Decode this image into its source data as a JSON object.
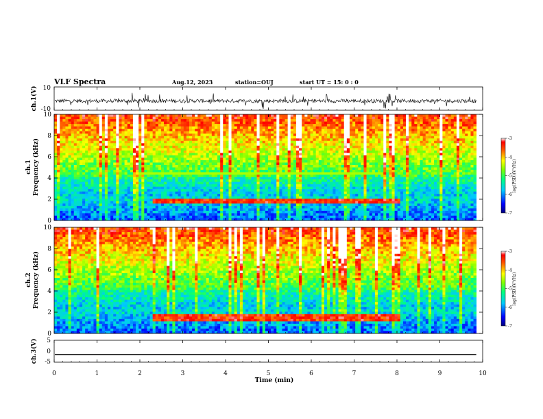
{
  "header": {
    "title": "VLF Spectra",
    "date": "Aug.12, 2023",
    "station": "station=OUJ",
    "start": "start  UT =   15: 0  : 0"
  },
  "chart_data": [
    {
      "type": "line",
      "ylabel": "ch.1(V)",
      "ylim": [
        -10,
        10
      ],
      "ytick_labels": [
        "10",
        "-10"
      ],
      "description_trace": "noisy waveform around -2 V with spikes to about ±8 V",
      "baseline": -2,
      "xlim": [
        0,
        10
      ]
    },
    {
      "type": "heatmap",
      "ylabel_top": "ch.1",
      "ylabel": "Frequency (kHz)",
      "ylim": [
        0,
        10
      ],
      "ytick_labels": [
        "0",
        "2",
        "4",
        "6",
        "8",
        "10"
      ],
      "xlim": [
        0,
        9.85
      ],
      "colorbar": {
        "range": [
          -7,
          -3
        ],
        "ticks": [
          "-3",
          "-4",
          "-5",
          "-6",
          "-7"
        ],
        "label": "log(PSD)(V²/Hz)"
      },
      "features": {
        "strong_band_khz": [
          1.5,
          2.0
        ],
        "strong_band_time_min": [
          2.3,
          8.1
        ],
        "line_khz": 4.5
      }
    },
    {
      "type": "heatmap",
      "ylabel_top": "ch.2",
      "ylabel": "Frequency (kHz)",
      "ylim": [
        0,
        10
      ],
      "ytick_labels": [
        "0",
        "2",
        "4",
        "6",
        "8",
        "10"
      ],
      "xlim": [
        0,
        9.85
      ],
      "colorbar": {
        "range": [
          -7,
          -3
        ],
        "ticks": [
          "-3",
          "-4",
          "-5",
          "-6",
          "-7"
        ],
        "label": "log(PSD)(V²/Hz)"
      },
      "features": {
        "strong_band_khz": [
          1.2,
          1.8
        ],
        "strong_band_time_min": [
          2.3,
          8.1
        ]
      }
    },
    {
      "type": "line",
      "ylabel": "ch.3(V)",
      "ylim": [
        -5,
        5
      ],
      "ytick_labels": [
        "5",
        "0",
        "-5"
      ],
      "values_constant": -1.5,
      "xlim": [
        0,
        9.85
      ]
    }
  ],
  "xaxis": {
    "label": "Time (min)",
    "ticks": [
      "0",
      "1",
      "2",
      "3",
      "4",
      "5",
      "6",
      "7",
      "8",
      "9",
      "10"
    ]
  }
}
